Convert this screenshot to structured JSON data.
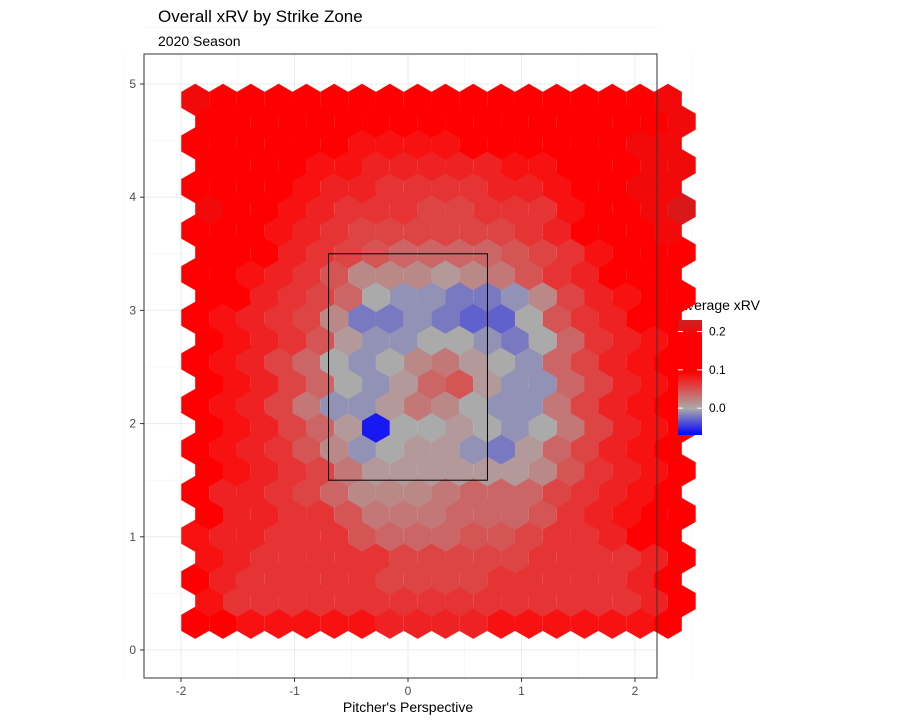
{
  "chart_data": {
    "type": "heatmap",
    "title": "Overall xRV by Strike Zone",
    "subtitle": "2020 Season",
    "xlabel": "Pitcher's Perspective",
    "ylabel": "",
    "xlim": [
      -2.25,
      2.25
    ],
    "ylim": [
      -0.1,
      5.2
    ],
    "x_ticks": [
      -2,
      -1,
      0,
      1,
      2
    ],
    "x_tick_labels": [
      "-2",
      "-1",
      "0",
      "1",
      "2"
    ],
    "y_ticks": [
      0,
      1,
      2,
      3,
      4,
      5
    ],
    "y_tick_labels": [
      "0",
      "1",
      "2",
      "3",
      "4",
      "5"
    ],
    "grid": true,
    "legend_position": "right",
    "legend": {
      "title": "Average xRV",
      "ticks": [
        0.0,
        0.1,
        0.2
      ],
      "tick_labels": [
        "0.0",
        "0.1",
        "0.2"
      ],
      "range": [
        -0.07,
        0.23
      ],
      "colors": {
        "low": "#0000ff",
        "mid": "#aaaaaa",
        "high": "#ff0000",
        "top": "#cc2222"
      }
    },
    "strike_zone": {
      "x": [
        -0.7,
        0.7
      ],
      "y": [
        1.5,
        3.5
      ]
    },
    "hex_grid": {
      "x_start": -1.875,
      "x_step": 0.245,
      "cols": 18,
      "y_start": 0.24,
      "y_step": 0.1925,
      "rows": 25
    },
    "hex_values": [
      [
        0.12,
        0.1,
        0.09,
        0.09,
        0.09,
        0.09,
        0.09,
        0.08,
        0.08,
        0.08,
        0.08,
        0.09,
        0.09,
        0.09,
        0.09,
        0.09,
        0.09,
        0.12
      ],
      [
        0.09,
        0.07,
        0.07,
        0.07,
        0.07,
        0.07,
        0.07,
        0.07,
        0.07,
        0.07,
        0.07,
        0.07,
        0.07,
        0.07,
        0.07,
        0.07,
        0.08,
        0.11
      ],
      [
        0.13,
        0.08,
        0.07,
        0.07,
        0.07,
        0.07,
        0.07,
        0.06,
        0.06,
        0.06,
        0.06,
        0.07,
        0.07,
        0.07,
        0.07,
        0.07,
        0.08,
        0.15
      ],
      [
        0.09,
        0.08,
        0.07,
        0.07,
        0.07,
        0.07,
        0.07,
        0.06,
        0.06,
        0.06,
        0.06,
        0.06,
        0.07,
        0.07,
        0.07,
        0.07,
        0.08,
        0.1
      ],
      [
        0.09,
        0.08,
        0.08,
        0.07,
        0.07,
        0.07,
        0.05,
        0.04,
        0.04,
        0.04,
        0.05,
        0.05,
        0.06,
        0.07,
        0.07,
        0.08,
        0.1,
        0.11
      ],
      [
        0.1,
        0.08,
        0.08,
        0.07,
        0.07,
        0.05,
        0.03,
        0.03,
        0.03,
        0.04,
        0.04,
        0.04,
        0.05,
        0.07,
        0.08,
        0.09,
        0.1,
        0.11
      ],
      [
        0.1,
        0.08,
        0.08,
        0.07,
        0.06,
        0.04,
        0.02,
        0.02,
        0.02,
        0.03,
        0.04,
        0.04,
        0.04,
        0.06,
        0.07,
        0.08,
        0.09,
        0.1
      ],
      [
        0.11,
        0.09,
        0.08,
        0.07,
        0.06,
        0.03,
        0.01,
        0.01,
        0.01,
        0.01,
        0.01,
        0.01,
        0.02,
        0.05,
        0.07,
        0.08,
        0.09,
        0.1
      ],
      [
        0.11,
        0.09,
        0.08,
        0.07,
        0.05,
        0.02,
        -0.01,
        0.0,
        0.01,
        0.01,
        -0.01,
        -0.02,
        0.01,
        0.04,
        0.06,
        0.08,
        0.09,
        0.1
      ],
      [
        0.11,
        0.09,
        0.08,
        0.06,
        0.04,
        0.01,
        -0.06,
        0.0,
        0.0,
        0.01,
        0.0,
        -0.01,
        0.0,
        0.03,
        0.06,
        0.08,
        0.09,
        0.1
      ],
      [
        0.11,
        0.09,
        0.08,
        0.06,
        0.03,
        -0.01,
        -0.01,
        0.01,
        0.03,
        0.02,
        0.0,
        -0.01,
        -0.01,
        0.03,
        0.06,
        0.08,
        0.09,
        0.1
      ],
      [
        0.11,
        0.09,
        0.08,
        0.06,
        0.04,
        0.0,
        -0.01,
        0.01,
        0.04,
        0.05,
        0.01,
        -0.01,
        -0.01,
        0.04,
        0.06,
        0.08,
        0.09,
        0.1
      ],
      [
        0.11,
        0.09,
        0.08,
        0.06,
        0.04,
        0.0,
        -0.01,
        0.0,
        0.02,
        0.03,
        0.01,
        0.0,
        -0.01,
        0.04,
        0.06,
        0.08,
        0.09,
        0.1
      ],
      [
        0.11,
        0.09,
        0.08,
        0.07,
        0.05,
        0.01,
        -0.01,
        -0.01,
        0.0,
        0.0,
        -0.01,
        -0.02,
        0.0,
        0.04,
        0.07,
        0.08,
        0.09,
        0.11
      ],
      [
        0.11,
        0.09,
        0.08,
        0.07,
        0.06,
        0.02,
        -0.02,
        -0.02,
        -0.01,
        -0.02,
        -0.03,
        -0.03,
        0.0,
        0.05,
        0.07,
        0.08,
        0.1,
        0.11
      ],
      [
        0.12,
        0.1,
        0.08,
        0.07,
        0.06,
        0.04,
        0.0,
        -0.01,
        -0.01,
        -0.02,
        -0.02,
        -0.01,
        0.02,
        0.06,
        0.08,
        0.09,
        0.1,
        0.12
      ],
      [
        0.12,
        0.1,
        0.09,
        0.08,
        0.07,
        0.05,
        0.02,
        0.02,
        0.02,
        0.01,
        0.02,
        0.03,
        0.05,
        0.07,
        0.08,
        0.1,
        0.12,
        0.13
      ],
      [
        0.14,
        0.12,
        0.1,
        0.08,
        0.07,
        0.06,
        0.05,
        0.04,
        0.04,
        0.04,
        0.04,
        0.05,
        0.06,
        0.07,
        0.09,
        0.11,
        0.14,
        0.16
      ],
      [
        0.18,
        0.15,
        0.1,
        0.09,
        0.08,
        0.07,
        0.06,
        0.06,
        0.06,
        0.06,
        0.06,
        0.06,
        0.07,
        0.08,
        0.1,
        0.12,
        0.18,
        0.2
      ],
      [
        0.2,
        0.16,
        0.11,
        0.09,
        0.08,
        0.07,
        0.07,
        0.07,
        0.06,
        0.06,
        0.07,
        0.07,
        0.07,
        0.09,
        0.1,
        0.15,
        0.2,
        0.22
      ],
      [
        0.18,
        0.16,
        0.11,
        0.1,
        0.09,
        0.08,
        0.08,
        0.07,
        0.07,
        0.07,
        0.07,
        0.08,
        0.08,
        0.09,
        0.11,
        0.15,
        0.2,
        0.2
      ],
      [
        0.1,
        0.13,
        0.1,
        0.1,
        0.09,
        0.09,
        0.08,
        0.08,
        0.08,
        0.08,
        0.08,
        0.09,
        0.09,
        0.1,
        0.11,
        0.14,
        0.2,
        0.2
      ],
      [
        0.1,
        0.14,
        0.11,
        0.1,
        0.1,
        0.1,
        0.09,
        0.09,
        0.09,
        0.09,
        0.1,
        0.1,
        0.1,
        0.1,
        0.11,
        0.13,
        0.2,
        0.2
      ],
      [
        0.11,
        0.11,
        0.1,
        0.1,
        0.1,
        0.1,
        0.1,
        0.1,
        0.1,
        0.1,
        0.11,
        0.13,
        0.1,
        0.1,
        0.1,
        0.12,
        0.14,
        0.2
      ],
      [
        0.2,
        0.11,
        0.11,
        0.11,
        0.11,
        0.11,
        0.11,
        0.11,
        0.11,
        0.11,
        0.11,
        0.11,
        0.11,
        0.11,
        0.11,
        0.11,
        0.14,
        0.2
      ]
    ]
  }
}
